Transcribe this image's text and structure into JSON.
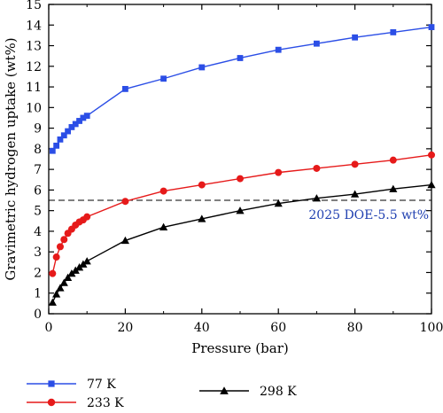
{
  "chart_data": {
    "type": "line",
    "xlabel": "Pressure (bar)",
    "ylabel": "Gravimetric hydrogen uptake (wt%)",
    "xlim": [
      0,
      100
    ],
    "ylim": [
      0,
      15
    ],
    "x_ticks": [
      0,
      20,
      40,
      60,
      80,
      100
    ],
    "y_ticks": [
      0,
      1,
      2,
      3,
      4,
      5,
      6,
      7,
      8,
      9,
      10,
      11,
      12,
      13,
      14,
      15
    ],
    "grid": false,
    "legend_position": "bottom",
    "reference_line": {
      "y": 5.5,
      "style": "dashed",
      "label": "2025 DOE-5.5 wt%",
      "label_color": "#1f3fb0"
    },
    "series": [
      {
        "name": "77 K",
        "color": "#2b4ee6",
        "marker": "square",
        "x": [
          1,
          2,
          3,
          4,
          5,
          6,
          7,
          8,
          9,
          10,
          20,
          30,
          40,
          50,
          60,
          70,
          80,
          90,
          100
        ],
        "y": [
          7.9,
          8.15,
          8.45,
          8.65,
          8.85,
          9.05,
          9.2,
          9.35,
          9.5,
          9.6,
          10.9,
          11.4,
          11.95,
          12.4,
          12.8,
          13.1,
          13.4,
          13.65,
          13.9
        ]
      },
      {
        "name": "233 K",
        "color": "#e61a1a",
        "marker": "circle",
        "x": [
          1,
          2,
          3,
          4,
          5,
          6,
          7,
          8,
          9,
          10,
          20,
          30,
          40,
          50,
          60,
          70,
          80,
          90,
          100
        ],
        "y": [
          1.95,
          2.75,
          3.25,
          3.6,
          3.9,
          4.1,
          4.3,
          4.45,
          4.55,
          4.7,
          5.45,
          5.95,
          6.25,
          6.55,
          6.85,
          7.05,
          7.25,
          7.45,
          7.7
        ]
      },
      {
        "name": "298 K",
        "color": "#000000",
        "marker": "triangle",
        "x": [
          1,
          2,
          3,
          4,
          5,
          6,
          7,
          8,
          9,
          10,
          20,
          30,
          40,
          50,
          60,
          70,
          80,
          90,
          100
        ],
        "y": [
          0.55,
          0.95,
          1.25,
          1.5,
          1.75,
          1.95,
          2.1,
          2.25,
          2.4,
          2.55,
          3.55,
          4.2,
          4.6,
          5.0,
          5.35,
          5.6,
          5.8,
          6.05,
          6.25
        ]
      }
    ]
  }
}
